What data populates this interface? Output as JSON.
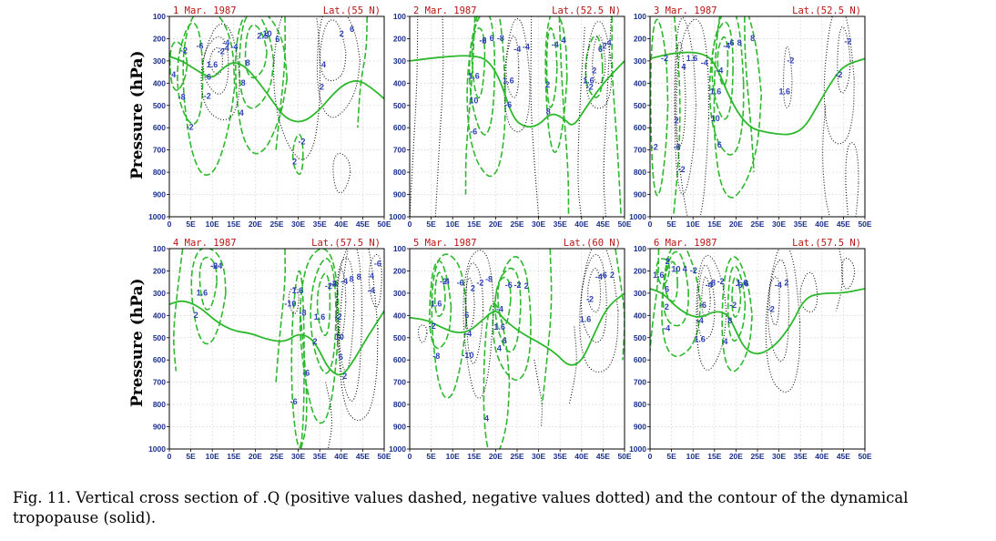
{
  "figure": {
    "y_axis_label": "Pressure (hPa)",
    "x_ticks": [
      "0",
      "5E",
      "10E",
      "15E",
      "20E",
      "25E",
      "30E",
      "35E",
      "40E",
      "45E",
      "50E"
    ],
    "y_ticks": [
      "100",
      "200",
      "300",
      "400",
      "500",
      "600",
      "700",
      "800",
      "900",
      "1000"
    ],
    "colors": {
      "positive": "#2db82d",
      "negative": "#111111",
      "tropopause": "#2db82d",
      "title": "#b81414",
      "tick": "#1a2f8a",
      "contour_label": "#2a3fb3",
      "grid": "#c8c8c8"
    },
    "line_styles": {
      "positive": "dashed",
      "negative": "dotted",
      "tropopause": "solid"
    },
    "panels": [
      {
        "date": "1 Mar. 1987",
        "lat": "Lat.(55 N)",
        "labels": [
          "-2",
          "4",
          "-6",
          "-8",
          "-4",
          "-2",
          "2.5",
          "8",
          "10",
          "8",
          "6",
          "4",
          "-2",
          "2",
          "-2",
          "1.6",
          "-4",
          "-6",
          "-4",
          "-2",
          "2",
          "4",
          "6",
          "2"
        ],
        "tropopause": [
          [
            0,
            280
          ],
          [
            3,
            300
          ],
          [
            7,
            350
          ],
          [
            10,
            380
          ],
          [
            12,
            340
          ],
          [
            15,
            300
          ],
          [
            18,
            330
          ],
          [
            21,
            400
          ],
          [
            24,
            480
          ],
          [
            27,
            560
          ],
          [
            31,
            580
          ],
          [
            35,
            520
          ],
          [
            38,
            450
          ],
          [
            41,
            400
          ],
          [
            44,
            385
          ],
          [
            47,
            420
          ],
          [
            50,
            470
          ]
        ]
      },
      {
        "date": "2 Mar. 1987",
        "lat": "Lat.(52.5 N)",
        "labels": [
          "-2",
          "1.6",
          "6",
          "10",
          "-8",
          "-6",
          "-4",
          "2",
          "4",
          "8",
          "6",
          "1.6",
          "-4",
          "1.6",
          "-4",
          "-6",
          "-2",
          "2",
          "-4",
          "-2",
          "-6"
        ],
        "tropopause": [
          [
            0,
            300
          ],
          [
            4,
            290
          ],
          [
            9,
            280
          ],
          [
            14,
            275
          ],
          [
            18,
            290
          ],
          [
            21,
            380
          ],
          [
            24,
            560
          ],
          [
            27,
            600
          ],
          [
            30,
            590
          ],
          [
            33,
            530
          ],
          [
            36,
            560
          ],
          [
            38,
            600
          ],
          [
            41,
            510
          ],
          [
            45,
            400
          ],
          [
            50,
            300
          ]
        ]
      },
      {
        "date": "3 Mar. 1987",
        "lat": "Lat.(52.5 N)",
        "labels": [
          "-4",
          "-4",
          "-6",
          "1.6",
          "8",
          "10",
          "8",
          "6",
          "-2",
          "-2",
          "4",
          "2",
          "1.6",
          "-6",
          "-4",
          "-2",
          "-2",
          "1.6",
          "-2",
          "-2"
        ],
        "tropopause": [
          [
            0,
            290
          ],
          [
            4,
            270
          ],
          [
            8,
            260
          ],
          [
            12,
            265
          ],
          [
            15,
            300
          ],
          [
            19,
            490
          ],
          [
            23,
            600
          ],
          [
            27,
            620
          ],
          [
            30,
            630
          ],
          [
            33,
            630
          ],
          [
            36,
            600
          ],
          [
            39,
            500
          ],
          [
            42,
            400
          ],
          [
            45,
            320
          ],
          [
            50,
            290
          ]
        ]
      },
      {
        "date": "4 Mar. 1987",
        "lat": "Lat.(57.5 N)",
        "labels": [
          "-6",
          "1.6",
          "4",
          "2",
          "-2",
          "1.6",
          "-2",
          "2",
          "-4",
          "-6",
          "-8",
          "-6",
          "-4",
          "-2",
          "8",
          "10",
          "8",
          "6",
          "4",
          "2",
          "1.6",
          "-10",
          "-6",
          "-4",
          "-2"
        ],
        "tropopause": [
          [
            0,
            350
          ],
          [
            3,
            330
          ],
          [
            7,
            360
          ],
          [
            11,
            430
          ],
          [
            15,
            470
          ],
          [
            19,
            480
          ],
          [
            23,
            510
          ],
          [
            27,
            520
          ],
          [
            30,
            480
          ],
          [
            33,
            500
          ],
          [
            35,
            560
          ],
          [
            37,
            640
          ],
          [
            40,
            680
          ],
          [
            43,
            600
          ],
          [
            46,
            500
          ],
          [
            50,
            380
          ]
        ]
      },
      {
        "date": "5 Mar. 1987",
        "lat": "Lat.(60 N)",
        "labels": [
          "-2",
          "1.6",
          "4",
          "-2",
          "-6",
          "-8",
          "-6",
          "-4",
          "-2",
          "1.6",
          "2",
          "4",
          "6",
          "4",
          "2",
          "6",
          "-2",
          "-4",
          "-8",
          "-10",
          "-4",
          "-2",
          "-6",
          "1.6",
          "2"
        ],
        "tropopause": [
          [
            0,
            410
          ],
          [
            4,
            420
          ],
          [
            8,
            460
          ],
          [
            11,
            480
          ],
          [
            14,
            470
          ],
          [
            17,
            420
          ],
          [
            20,
            370
          ],
          [
            22,
            420
          ],
          [
            26,
            480
          ],
          [
            30,
            520
          ],
          [
            34,
            570
          ],
          [
            37,
            630
          ],
          [
            40,
            610
          ],
          [
            43,
            480
          ],
          [
            46,
            360
          ],
          [
            50,
            300
          ]
        ]
      },
      {
        "date": "6 Mar. 1987",
        "lat": "Lat.(57.5 N)",
        "labels": [
          "10",
          "6",
          "4",
          "2",
          "-2",
          "-4",
          "-6",
          "-2",
          "1.6",
          "8",
          "6",
          "4",
          "2",
          "1.6",
          "-4",
          "-6",
          "-8",
          "-4",
          "-2",
          "1.6",
          "-4",
          "-2",
          "2"
        ],
        "tropopause": [
          [
            0,
            280
          ],
          [
            3,
            300
          ],
          [
            6,
            360
          ],
          [
            9,
            400
          ],
          [
            12,
            410
          ],
          [
            15,
            380
          ],
          [
            18,
            390
          ],
          [
            20,
            470
          ],
          [
            22,
            550
          ],
          [
            25,
            580
          ],
          [
            29,
            540
          ],
          [
            33,
            440
          ],
          [
            36,
            320
          ],
          [
            40,
            300
          ],
          [
            45,
            300
          ],
          [
            50,
            280
          ]
        ]
      }
    ]
  },
  "caption": "Fig. 11. Vertical cross section of .Q (positive values dashed, negative values dotted) and the contour of the dynamical tropopause (solid)."
}
